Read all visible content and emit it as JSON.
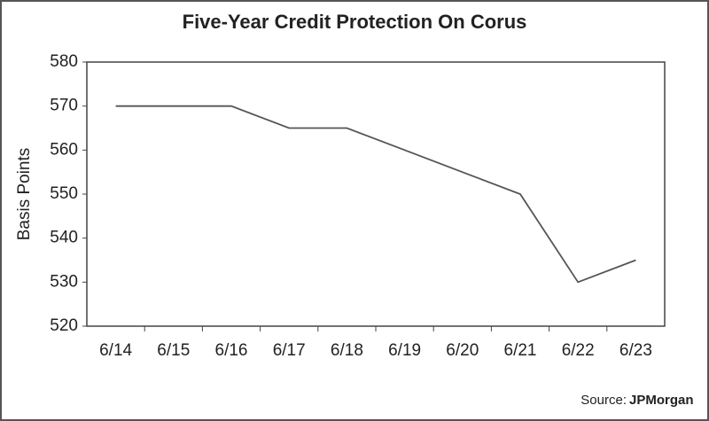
{
  "chart_data": {
    "type": "line",
    "title": "Five-Year Credit Protection On Corus",
    "y_label": "Basis Points",
    "categories": [
      "6/14",
      "6/15",
      "6/16",
      "6/17",
      "6/18",
      "6/19",
      "6/20",
      "6/21",
      "6/22",
      "6/23"
    ],
    "values": [
      570,
      570,
      570,
      565,
      565,
      560,
      555,
      550,
      530,
      535
    ],
    "color": "#555555",
    "ylim": [
      520,
      580
    ],
    "yticks": [
      520,
      530,
      540,
      550,
      560,
      570,
      580
    ],
    "grid": false,
    "source_label": "Source:",
    "source_name": "JPMorgan"
  }
}
